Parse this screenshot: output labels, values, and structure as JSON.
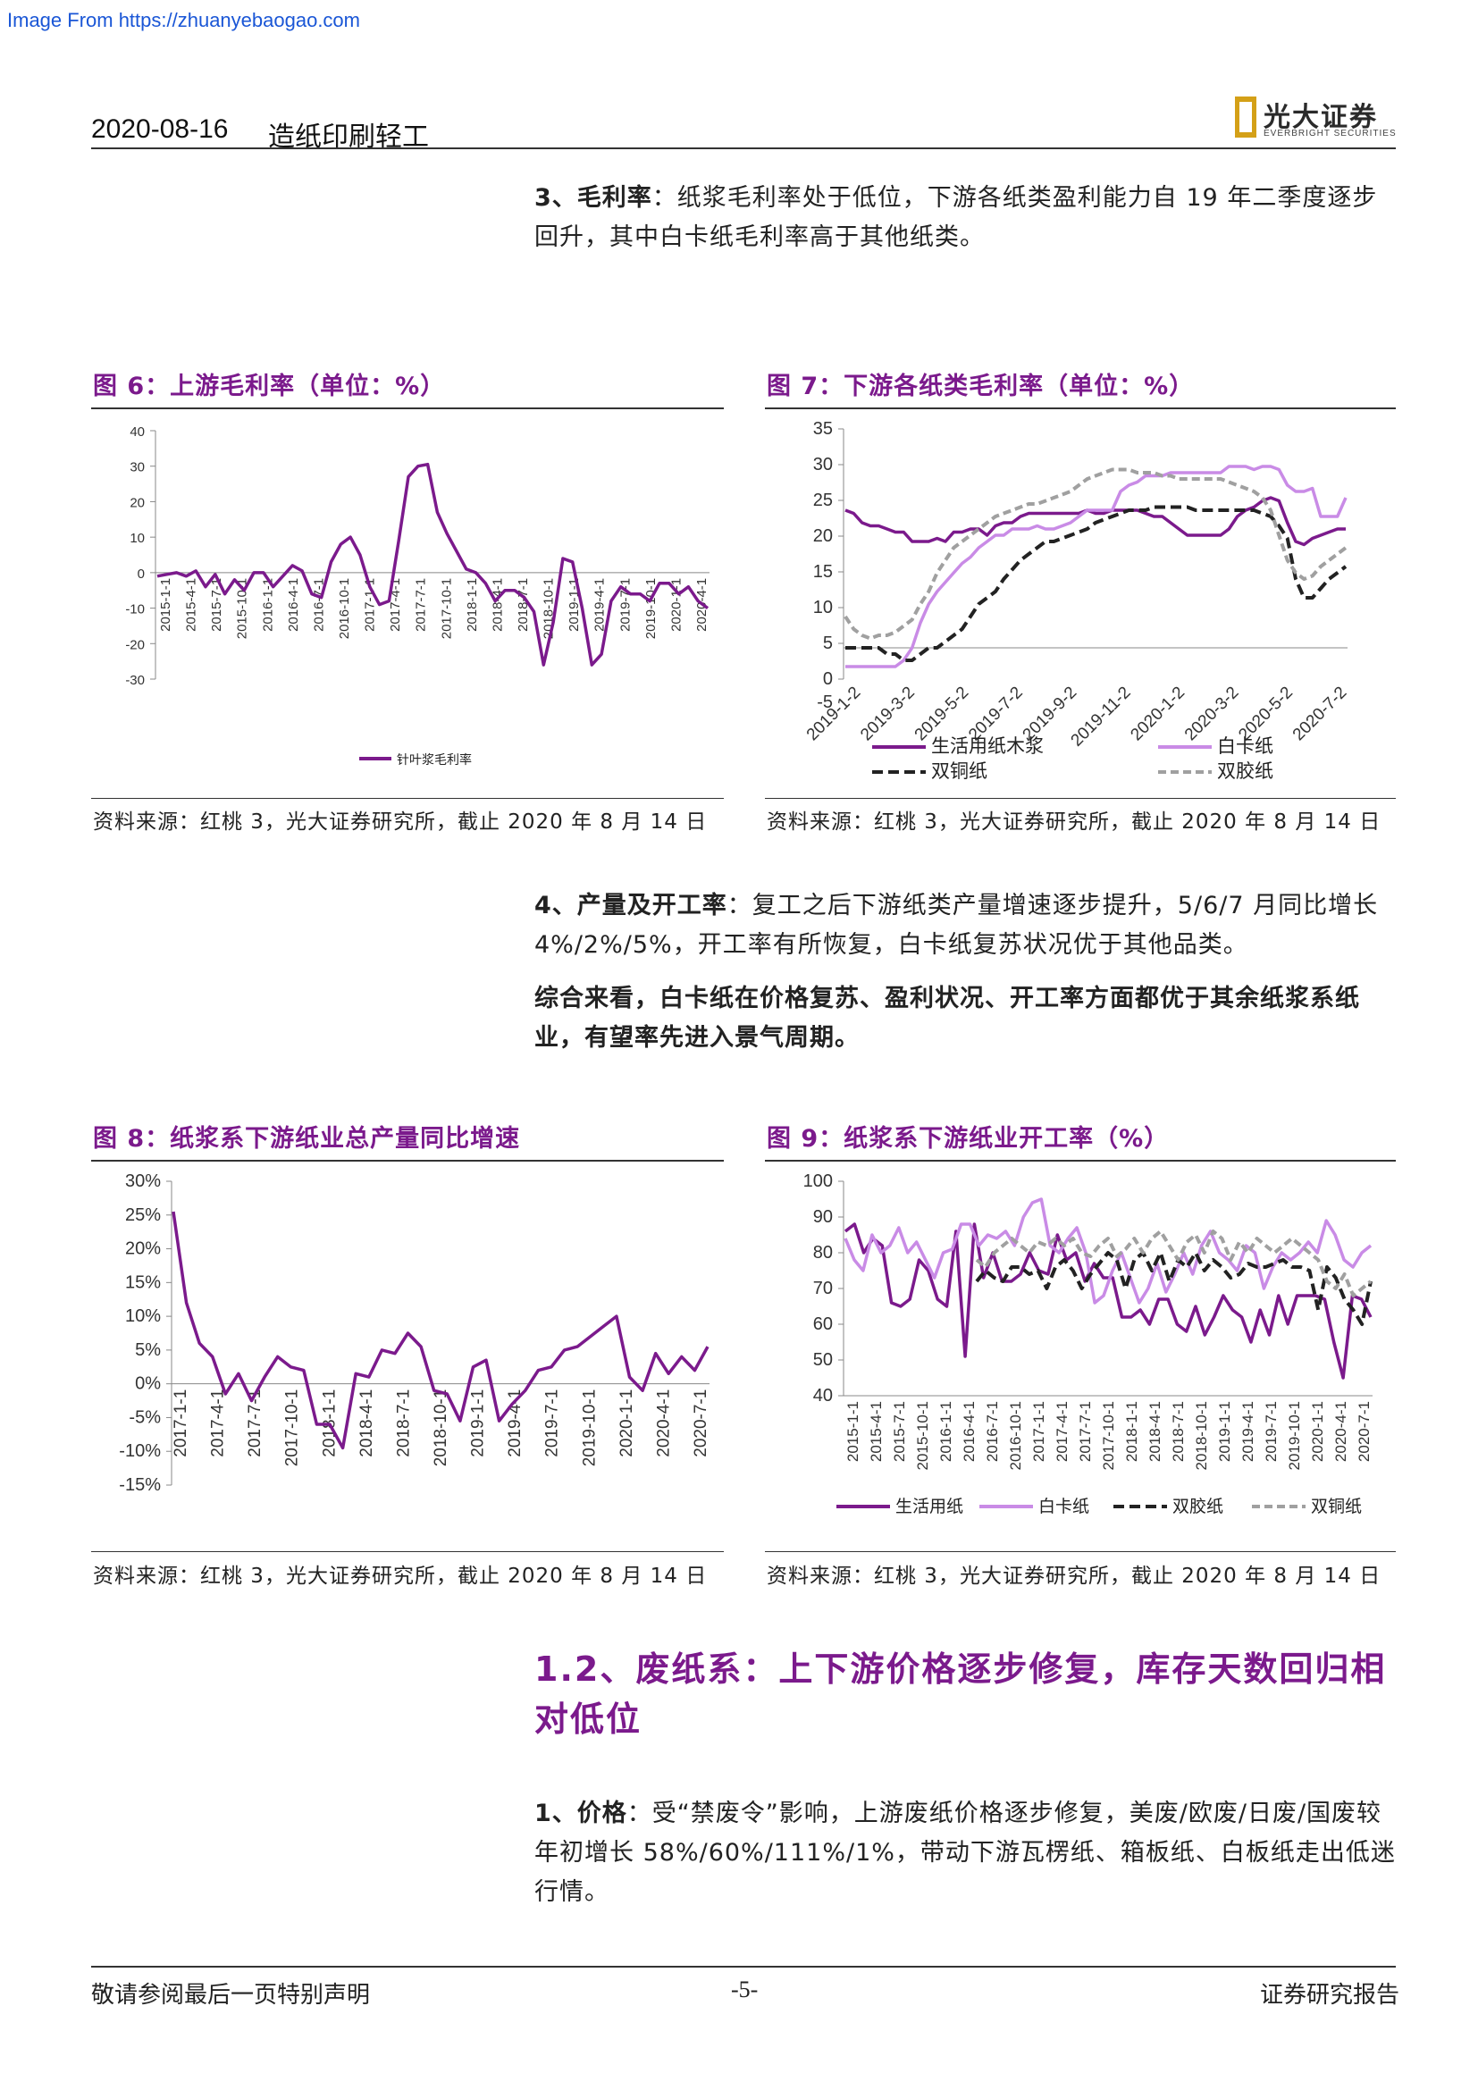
{
  "watermark": "Image From https://zhuanyebaogao.com",
  "header": {
    "date": "2020-08-16",
    "category": "造纸印刷轻工",
    "logo_cn": "光大证券",
    "logo_en": "EVERBRIGHT SECURITIES"
  },
  "para3": {
    "lead": "3、毛利率",
    "text": "：纸浆毛利率处于低位，下游各纸类盈利能力自 19 年二季度逐步回升，其中白卡纸毛利率高于其他纸类。"
  },
  "fig6": {
    "title": "图 6：上游毛利率（单位：%）",
    "source": "资料来源：红桃 3，光大证券研究所，截止 2020 年 8 月 14 日"
  },
  "fig7": {
    "title": "图 7：下游各纸类毛利率（单位：%）",
    "source": "资料来源：红桃 3，光大证券研究所，截止 2020 年 8 月 14 日"
  },
  "para4": {
    "lead": "4、产量及开工率",
    "text": "：复工之后下游纸类产量增速逐步提升，5/6/7 月同比增长 4%/2%/5%，开工率有所恢复，白卡纸复苏状况优于其他品类。"
  },
  "para_summary": "综合来看，白卡纸在价格复苏、盈利状况、开工率方面都优于其余纸浆系纸业，有望率先进入景气周期。",
  "fig8": {
    "title": "图 8：纸浆系下游纸业总产量同比增速",
    "source": "资料来源：红桃 3，光大证券研究所，截止 2020 年 8 月 14 日"
  },
  "fig9": {
    "title": "图 9：纸浆系下游纸业开工率（%）",
    "source": "资料来源：红桃 3，光大证券研究所，截止 2020 年 8 月 14 日"
  },
  "section": {
    "title": "1.2、废纸系：上下游价格逐步修复，库存天数回归相对低位"
  },
  "para1": {
    "lead": "1、价格",
    "text": "：受“禁废令”影响，上游废纸价格逐步修复，美废/欧废/日废/国废较年初增长 58%/60%/111%/1%，带动下游瓦楞纸、箱板纸、白板纸走出低迷行情。"
  },
  "footer": {
    "left": "敬请参阅最后一页特别声明",
    "page": "-5-",
    "right": "证券研究报告"
  },
  "colors": {
    "purple": "#7b1a8c",
    "light_purple": "#c98be6",
    "black": "#222222",
    "gray": "#a0a0a0"
  },
  "chart_data": [
    {
      "id": "fig6",
      "type": "line",
      "ylim": [
        -30,
        40
      ],
      "yticks": [
        40,
        30,
        20,
        10,
        0,
        -10,
        -20,
        -30
      ],
      "x_ticklabels": [
        "2015-1-1",
        "2015-4-1",
        "2015-7-1",
        "2015-10-1",
        "2016-1-1",
        "2016-4-1",
        "2016-7-1",
        "2016-10-1",
        "2017-1-1",
        "2017-4-1",
        "2017-7-1",
        "2017-10-1",
        "2018-1-1",
        "2018-4-1",
        "2018-7-1",
        "2018-10-1",
        "2019-1-1",
        "2019-4-1",
        "2019-7-1",
        "2019-10-1",
        "2020-1-1",
        "2020-4-1"
      ],
      "series": [
        {
          "name": "针叶浆毛利率",
          "color": "#7b1a8c",
          "values": [
            -1,
            -0.5,
            0,
            -1,
            0.5,
            -4,
            -0.5,
            -6,
            -2,
            -5,
            0,
            0,
            -4,
            -1,
            2,
            0.5,
            -6,
            -7,
            3,
            8,
            10,
            5,
            -4,
            -9,
            -8,
            9,
            27,
            30,
            30.5,
            17,
            11,
            6,
            1,
            0,
            -3,
            -8,
            -5,
            -5,
            -7,
            -11,
            -26,
            -14,
            4,
            3,
            -10,
            -26,
            -23,
            -8,
            -4,
            -6,
            -6,
            -8,
            -3,
            -3,
            -6,
            -4,
            -8,
            -10
          ]
        }
      ]
    },
    {
      "id": "fig7",
      "type": "line",
      "ylim": [
        -5,
        35
      ],
      "yticks": [
        35,
        30,
        25,
        20,
        15,
        10,
        5,
        0
      ],
      "y_extra_label": "-5",
      "x_ticklabels": [
        "2019-1-2",
        "2019-3-2",
        "2019-5-2",
        "2019-7-2",
        "2019-9-2",
        "2019-11-2",
        "2020-1-2",
        "2020-3-2",
        "2020-5-2",
        "2020-7-2"
      ],
      "series": [
        {
          "name": "生活用纸木浆",
          "color": "#7b1a8c",
          "dash": "",
          "values": [
            22,
            21.5,
            20,
            19.5,
            19.5,
            19,
            18.5,
            18.5,
            17,
            17,
            17,
            17.5,
            17,
            18.5,
            18.5,
            19,
            19,
            18,
            19.5,
            20,
            20,
            21,
            21.5,
            21.5,
            21.5,
            21.5,
            21.5,
            21.5,
            21.5,
            22,
            21.5,
            21.5,
            22,
            22,
            22,
            22,
            21.5,
            21,
            21,
            20,
            19,
            18,
            18,
            18,
            18,
            18,
            19,
            21,
            22,
            22.5,
            23.5,
            24,
            23.5,
            20,
            17,
            16.5,
            17.5,
            18,
            18.5,
            19,
            19
          ]
        },
        {
          "name": "白卡纸",
          "color": "#c98be6",
          "dash": "",
          "values": [
            -3,
            -3,
            -3,
            -3,
            -3,
            -3,
            -3,
            -2,
            0,
            4,
            7,
            9,
            10.5,
            12,
            13.5,
            14.5,
            16,
            17,
            18,
            18,
            19,
            19,
            19,
            19.5,
            19,
            19,
            19.5,
            20,
            21,
            22,
            22,
            22,
            22,
            25,
            26,
            26.5,
            27.5,
            27.5,
            27.5,
            28,
            28,
            28,
            28,
            28,
            28,
            28,
            29,
            29,
            29,
            28.5,
            29,
            29,
            28.5,
            26,
            25,
            25,
            25.5,
            21,
            21,
            21,
            24
          ]
        },
        {
          "name": "双铜纸",
          "color": "#222222",
          "dash": "12,6",
          "values": [
            0,
            0,
            0,
            0,
            0,
            -1,
            -1,
            -2,
            -2,
            -1,
            0,
            0,
            1,
            2,
            3,
            5,
            7,
            8,
            9,
            11,
            12.5,
            14,
            15,
            16,
            17,
            17,
            17.5,
            18,
            18.5,
            19,
            20,
            20.5,
            21,
            21.5,
            22,
            22,
            22,
            22.5,
            22.5,
            22.5,
            22.5,
            22.5,
            22,
            22,
            22,
            22,
            22,
            22,
            22,
            22,
            21.5,
            21,
            19.5,
            17.5,
            11,
            8,
            8,
            9.5,
            11,
            12,
            13
          ]
        },
        {
          "name": "双胶纸",
          "color": "#a0a0a0",
          "dash": "9,5",
          "values": [
            5,
            3,
            2,
            1.5,
            2,
            2,
            2.5,
            3.5,
            4.5,
            7,
            9,
            12,
            14,
            16,
            17,
            18,
            19,
            20,
            21,
            21.5,
            22,
            22.5,
            23,
            23,
            23.5,
            24,
            24.5,
            25,
            26,
            27,
            27.5,
            28,
            28.5,
            28.5,
            28.5,
            28,
            28,
            28,
            27.5,
            27.5,
            27,
            27,
            27,
            27,
            27,
            27,
            26.5,
            26,
            25.5,
            25,
            24,
            22,
            18,
            14,
            12,
            11,
            11.5,
            13,
            14,
            15,
            16
          ]
        }
      ]
    },
    {
      "id": "fig8",
      "type": "line",
      "ylim": [
        -15,
        30
      ],
      "yticks": [
        "30%",
        "25%",
        "20%",
        "15%",
        "10%",
        "5%",
        "0%",
        "-5%",
        "-10%",
        "-15%"
      ],
      "x_ticklabels": [
        "2017-1-1",
        "2017-4-1",
        "2017-7-1",
        "2017-10-1",
        "2018-1-1",
        "2018-4-1",
        "2018-7-1",
        "2018-10-1",
        "2019-1-1",
        "2019-4-1",
        "2019-7-1",
        "2019-10-1",
        "2020-1-1",
        "2020-4-1",
        "2020-7-1"
      ],
      "series": [
        {
          "name": "总产量同比增速",
          "color": "#7b1a8c",
          "values": [
            25.5,
            12,
            6,
            4,
            -1.5,
            1.5,
            -2.5,
            1,
            4,
            2.5,
            2,
            -6,
            -6,
            -9.5,
            1.5,
            1,
            5,
            4.5,
            7.5,
            5.5,
            -1,
            -1.5,
            -5.5,
            2.5,
            3.5,
            -5.5,
            -3,
            -1,
            2,
            2.5,
            5,
            5.5,
            7,
            8.5,
            10,
            1,
            -1,
            4.5,
            1.5,
            4,
            2,
            5.5
          ]
        }
      ]
    },
    {
      "id": "fig9",
      "type": "line",
      "ylim": [
        40,
        100
      ],
      "yticks": [
        100,
        90,
        80,
        70,
        60,
        50,
        40
      ],
      "x_ticklabels": [
        "2015-1-1",
        "2015-4-1",
        "2015-7-1",
        "2015-10-1",
        "2016-1-1",
        "2016-4-1",
        "2016-7-1",
        "2016-10-1",
        "2017-1-1",
        "2017-4-1",
        "2017-7-1",
        "2017-10-1",
        "2018-1-1",
        "2018-4-1",
        "2018-7-1",
        "2018-10-1",
        "2019-1-1",
        "2019-4-1",
        "2019-7-1",
        "2019-10-1",
        "2020-1-1",
        "2020-4-1",
        "2020-7-1"
      ],
      "series": [
        {
          "name": "生活用纸",
          "color": "#7b1a8c",
          "dash": "",
          "values": [
            86,
            88,
            80,
            84,
            82,
            66,
            65,
            67,
            78,
            75,
            67,
            65,
            86,
            51,
            88,
            73,
            80,
            72,
            72,
            74,
            80,
            75,
            74,
            85,
            78,
            80,
            72,
            77,
            73,
            73,
            62,
            62,
            64,
            60,
            67,
            67,
            60,
            58,
            65,
            57,
            62,
            68,
            64,
            62,
            55,
            64,
            57,
            68,
            60,
            68,
            68,
            68,
            67,
            55,
            45,
            68,
            67,
            62
          ]
        },
        {
          "name": "白卡纸",
          "color": "#c98be6",
          "dash": "",
          "values": [
            84,
            78,
            75,
            85,
            80,
            82,
            87,
            80,
            83,
            78,
            73,
            80,
            81,
            88,
            88,
            82,
            85,
            84,
            86,
            82,
            90,
            94,
            95,
            82,
            80,
            84,
            87,
            80,
            66,
            68,
            75,
            80,
            73,
            66,
            70,
            77,
            69,
            74,
            80,
            74,
            82,
            86,
            80,
            78,
            75,
            82,
            80,
            70,
            76,
            80,
            78,
            80,
            83,
            80,
            89,
            85,
            78,
            76,
            80,
            82
          ]
        },
        {
          "name": "双胶纸",
          "color": "#222222",
          "dash": "12,6",
          "values": [
            null,
            null,
            null,
            null,
            null,
            null,
            null,
            null,
            null,
            null,
            null,
            null,
            null,
            null,
            null,
            72,
            75,
            73,
            72,
            76,
            76,
            74,
            75,
            70,
            76,
            78,
            75,
            70,
            74,
            77,
            80,
            78,
            70,
            78,
            80,
            75,
            80,
            72,
            78,
            76,
            80,
            75,
            78,
            76,
            73,
            74,
            77,
            76,
            76,
            77,
            78,
            76,
            76,
            75,
            64,
            76,
            73,
            67,
            64,
            60,
            72
          ]
        },
        {
          "name": "双铜纸",
          "color": "#a0a0a0",
          "dash": "9,5",
          "values": [
            null,
            null,
            null,
            null,
            null,
            null,
            null,
            null,
            null,
            null,
            null,
            null,
            null,
            null,
            null,
            78,
            76,
            80,
            82,
            84,
            82,
            80,
            83,
            82,
            84,
            82,
            84,
            80,
            79,
            82,
            84,
            79,
            81,
            84,
            80,
            84,
            86,
            82,
            78,
            83,
            85,
            80,
            86,
            84,
            78,
            83,
            80,
            84,
            82,
            80,
            82,
            84,
            82,
            80,
            78,
            72,
            70,
            74,
            68,
            70,
            72
          ]
        }
      ]
    }
  ]
}
